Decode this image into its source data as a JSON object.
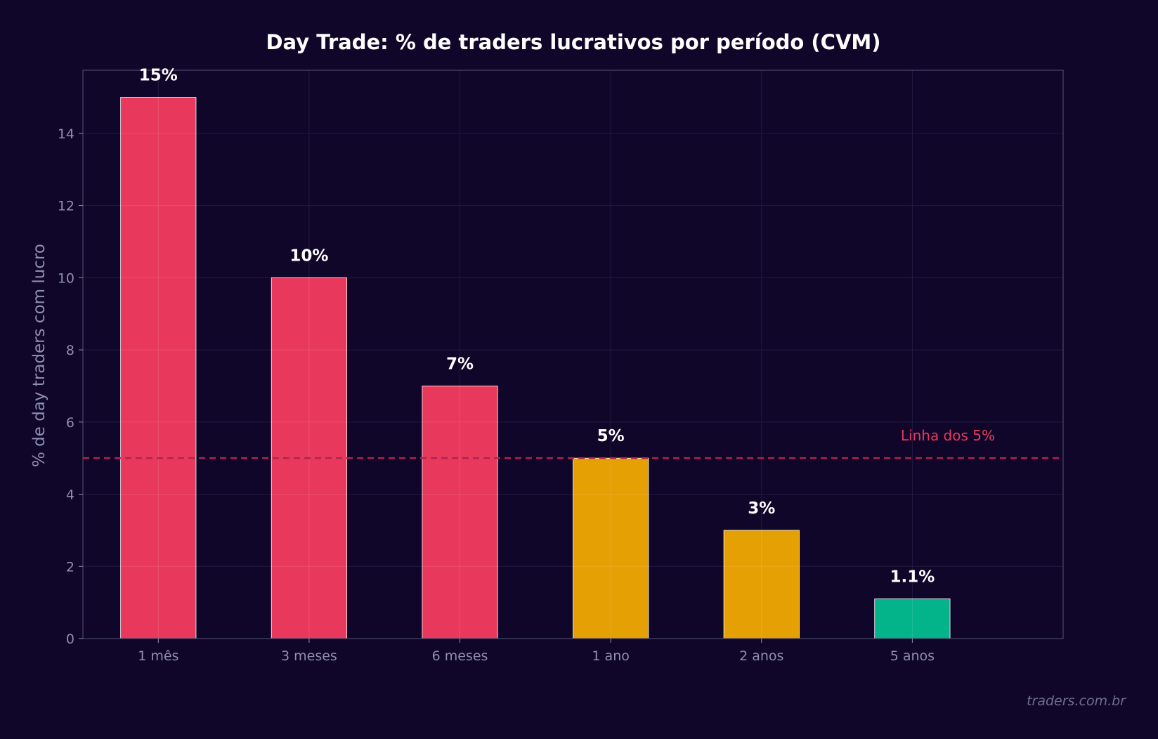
{
  "colors": {
    "background": "#10062a",
    "plot_background": "#10062a",
    "frame": "#4a4a6a",
    "grid": "#231a40",
    "text_muted": "#8f8fb0",
    "title": "#ffffff",
    "ref_line": "#b0234f",
    "ref_label": "#e8395c"
  },
  "watermark": "traders.com.br",
  "chart_data": {
    "type": "bar",
    "title": "Day Trade: % de traders lucrativos por período (CVM)",
    "xlabel": "",
    "ylabel": "% de day traders com lucro",
    "categories": [
      "1 mês",
      "3 meses",
      "6 meses",
      "1 ano",
      "2 anos",
      "5 anos"
    ],
    "values": [
      15,
      10,
      7,
      5,
      3,
      1.1
    ],
    "value_labels": [
      "15%",
      "10%",
      "7%",
      "5%",
      "3%",
      "1.1%"
    ],
    "bar_colors": [
      "#e8395c",
      "#e8395c",
      "#e8395c",
      "#e5a003",
      "#e5a003",
      "#03b38a"
    ],
    "ylim": [
      0,
      15.75
    ],
    "yticks": [
      0,
      2,
      4,
      6,
      8,
      10,
      12,
      14
    ],
    "grid": true,
    "reference_line": {
      "value": 5,
      "label": "Linha dos 5%",
      "style": "dashed"
    }
  }
}
